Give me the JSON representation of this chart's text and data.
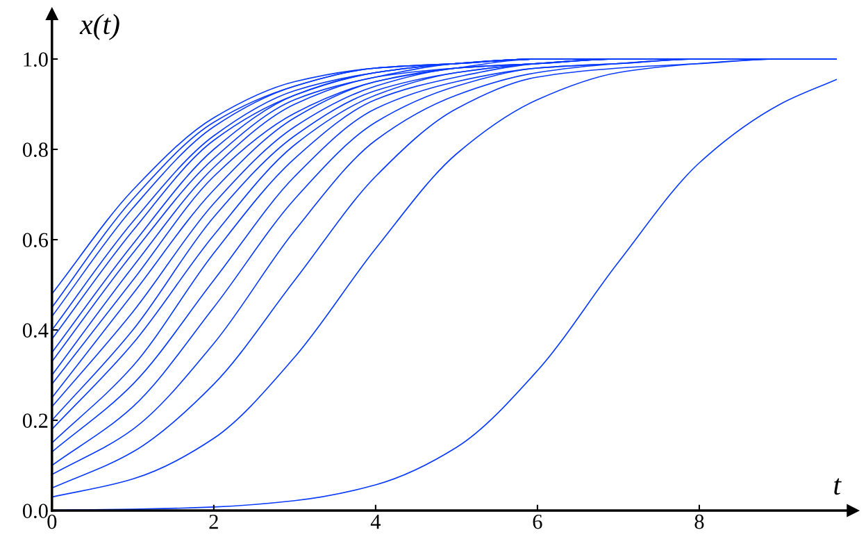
{
  "chart_data": {
    "type": "line",
    "xlabel": "t",
    "ylabel": "x(t)",
    "xlim": [
      0,
      9.9
    ],
    "xticks": [
      0,
      2,
      4,
      6,
      8
    ],
    "ylim": [
      0,
      1.1
    ],
    "yticks": [
      {
        "value": 0,
        "label": "0.0"
      },
      {
        "value": 0.2,
        "label": "0.2"
      },
      {
        "value": 0.4,
        "label": "0.4"
      },
      {
        "value": 0.6,
        "label": "0.6"
      },
      {
        "value": 0.8,
        "label": "0.8"
      },
      {
        "value": 1.0,
        "label": "1.0"
      }
    ],
    "grid": false,
    "legend": false,
    "marker": "none",
    "line_style": "solid",
    "x": [
      0,
      1,
      2,
      3,
      4,
      5,
      6,
      7,
      8,
      9,
      9.7
    ],
    "series": [
      {
        "color": "#0a3cff",
        "values": [
          0.001,
          0.003,
          0.008,
          0.022,
          0.057,
          0.14,
          0.31,
          0.55,
          0.77,
          0.9,
          0.955
        ]
      },
      {
        "color": "#0a3cff",
        "values": [
          0.03,
          0.07,
          0.16,
          0.34,
          0.58,
          0.79,
          0.91,
          0.97,
          0.99,
          1.0,
          1.0
        ]
      },
      {
        "color": "#0a3cff",
        "values": [
          0.05,
          0.13,
          0.28,
          0.51,
          0.74,
          0.89,
          0.96,
          0.98,
          0.99,
          1.0,
          1.0
        ]
      },
      {
        "color": "#0a3cff",
        "values": [
          0.08,
          0.18,
          0.37,
          0.62,
          0.82,
          0.92,
          0.97,
          0.99,
          1.0,
          1.0,
          1.0
        ]
      },
      {
        "color": "#0a3cff",
        "values": [
          0.1,
          0.23,
          0.45,
          0.69,
          0.86,
          0.94,
          0.98,
          0.99,
          1.0,
          1.0,
          1.0
        ]
      },
      {
        "color": "#0a3cff",
        "values": [
          0.13,
          0.28,
          0.51,
          0.74,
          0.89,
          0.95,
          0.98,
          0.99,
          1.0,
          1.0,
          1.0
        ]
      },
      {
        "color": "#0a3cff",
        "values": [
          0.15,
          0.32,
          0.57,
          0.78,
          0.91,
          0.96,
          0.99,
          1.0,
          1.0,
          1.0,
          1.0
        ]
      },
      {
        "color": "#0a3cff",
        "values": [
          0.18,
          0.37,
          0.61,
          0.81,
          0.92,
          0.97,
          0.99,
          1.0,
          1.0,
          1.0,
          1.0
        ]
      },
      {
        "color": "#0a3cff",
        "values": [
          0.2,
          0.4,
          0.65,
          0.83,
          0.93,
          0.97,
          0.99,
          1.0,
          1.0,
          1.0,
          1.0
        ]
      },
      {
        "color": "#0a3cff",
        "values": [
          0.23,
          0.44,
          0.68,
          0.85,
          0.94,
          0.98,
          0.99,
          1.0,
          1.0,
          1.0,
          1.0
        ]
      },
      {
        "color": "#0a3cff",
        "values": [
          0.25,
          0.48,
          0.71,
          0.87,
          0.95,
          0.98,
          0.99,
          1.0,
          1.0,
          1.0,
          1.0
        ]
      },
      {
        "color": "#0a3cff",
        "values": [
          0.28,
          0.51,
          0.74,
          0.88,
          0.95,
          0.98,
          1.0,
          1.0,
          1.0,
          1.0,
          1.0
        ]
      },
      {
        "color": "#0a3cff",
        "values": [
          0.3,
          0.54,
          0.76,
          0.9,
          0.96,
          0.98,
          0.99,
          1.0,
          1.0,
          1.0,
          1.0
        ]
      },
      {
        "color": "#0a3cff",
        "values": [
          0.33,
          0.57,
          0.78,
          0.91,
          0.96,
          0.99,
          1.0,
          1.0,
          1.0,
          1.0,
          1.0
        ]
      },
      {
        "color": "#0a3cff",
        "values": [
          0.35,
          0.59,
          0.8,
          0.92,
          0.97,
          0.99,
          1.0,
          1.0,
          1.0,
          1.0,
          1.0
        ]
      },
      {
        "color": "#0a3cff",
        "values": [
          0.38,
          0.62,
          0.82,
          0.92,
          0.97,
          0.99,
          1.0,
          1.0,
          1.0,
          1.0,
          1.0
        ]
      },
      {
        "color": "#0a3cff",
        "values": [
          0.4,
          0.64,
          0.83,
          0.93,
          0.97,
          0.99,
          1.0,
          1.0,
          1.0,
          1.0,
          1.0
        ]
      },
      {
        "color": "#0a3cff",
        "values": [
          0.43,
          0.67,
          0.85,
          0.94,
          0.98,
          0.99,
          1.0,
          1.0,
          1.0,
          1.0,
          1.0
        ]
      },
      {
        "color": "#0a3cff",
        "values": [
          0.45,
          0.69,
          0.86,
          0.94,
          0.98,
          0.99,
          1.0,
          1.0,
          1.0,
          1.0,
          1.0
        ]
      },
      {
        "color": "#0a3cff",
        "values": [
          0.48,
          0.71,
          0.87,
          0.95,
          0.98,
          0.99,
          1.0,
          1.0,
          1.0,
          1.0,
          1.0
        ]
      }
    ]
  }
}
